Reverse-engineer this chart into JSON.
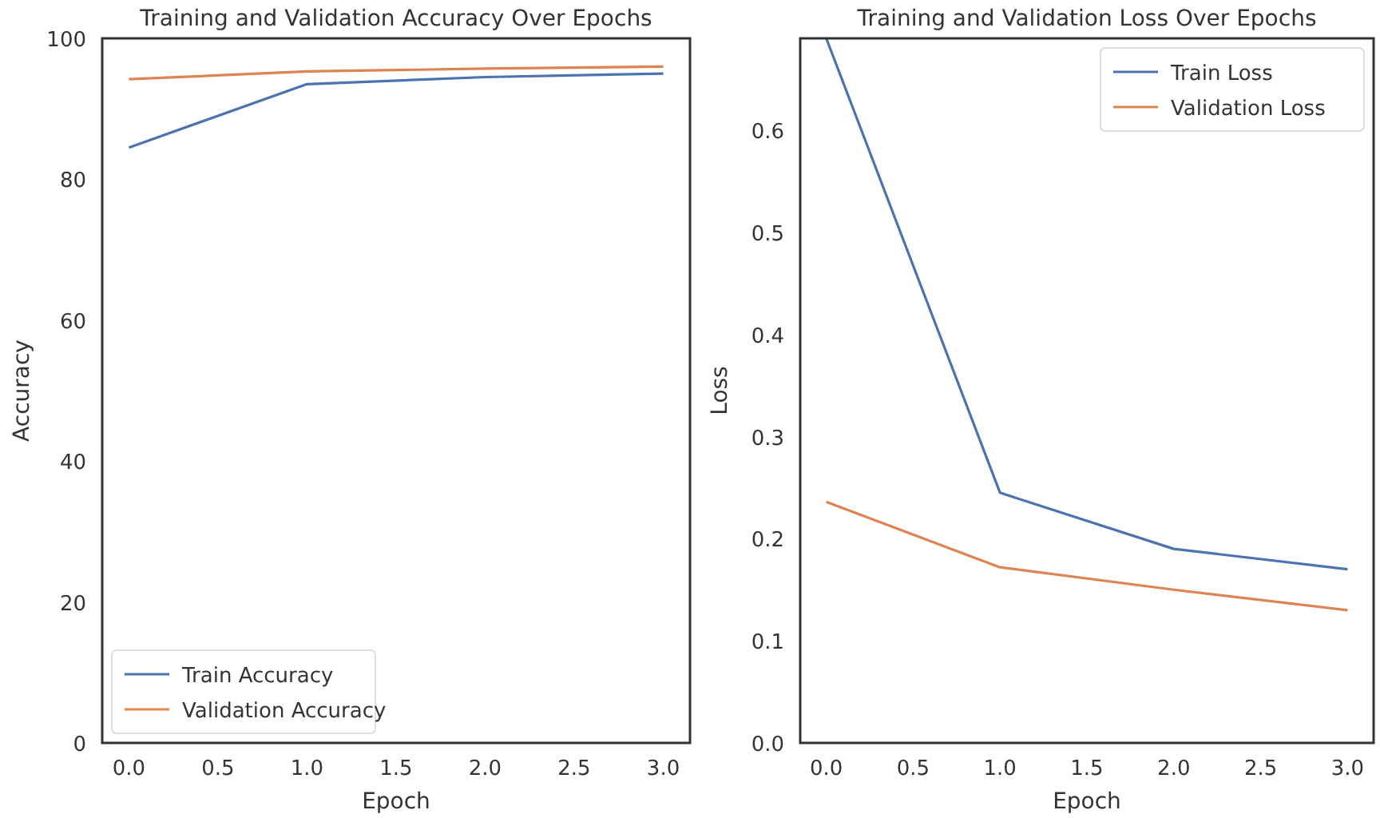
{
  "chart_data": [
    {
      "type": "line",
      "title": "Training and Validation Accuracy Over Epochs",
      "xlabel": "Epoch",
      "ylabel": "Accuracy",
      "x": [
        0,
        1,
        2,
        3
      ],
      "xlim": [
        -0.15,
        3.15
      ],
      "xticks": [
        {
          "value": 0,
          "label": "0.0"
        },
        {
          "value": 0.5,
          "label": "0.5"
        },
        {
          "value": 1,
          "label": "1.0"
        },
        {
          "value": 1.5,
          "label": "1.5"
        },
        {
          "value": 2,
          "label": "2.0"
        },
        {
          "value": 2.5,
          "label": "2.5"
        },
        {
          "value": 3,
          "label": "3.0"
        }
      ],
      "ylim": [
        0,
        100
      ],
      "yticks": [
        0,
        20,
        40,
        60,
        80,
        100
      ],
      "legend": "bottom left",
      "grid": false,
      "series": [
        {
          "name": "Train Accuracy",
          "color": "#4c72b0",
          "values": [
            84.5,
            93.5,
            94.5,
            95.0
          ]
        },
        {
          "name": "Validation Accuracy",
          "color": "#dd8452",
          "values": [
            94.2,
            95.3,
            95.7,
            96.0
          ]
        }
      ]
    },
    {
      "type": "line",
      "title": "Training and Validation Loss Over Epochs",
      "xlabel": "Epoch",
      "ylabel": "Loss",
      "x": [
        0,
        1,
        2,
        3
      ],
      "xlim": [
        -0.15,
        3.15
      ],
      "xticks": [
        {
          "value": 0,
          "label": "0.0"
        },
        {
          "value": 0.5,
          "label": "0.5"
        },
        {
          "value": 1,
          "label": "1.0"
        },
        {
          "value": 1.5,
          "label": "1.5"
        },
        {
          "value": 2,
          "label": "2.0"
        },
        {
          "value": 2.5,
          "label": "2.5"
        },
        {
          "value": 3,
          "label": "3.0"
        }
      ],
      "ylim": [
        0,
        0.69
      ],
      "yticks": [
        {
          "value": 0,
          "label": "0.0"
        },
        0.1,
        0.2,
        0.3,
        0.4,
        0.5,
        0.6
      ],
      "legend": "top right",
      "grid": false,
      "series": [
        {
          "name": "Train Loss",
          "color": "#4c72b0",
          "values": [
            0.69,
            0.245,
            0.19,
            0.17
          ]
        },
        {
          "name": "Validation Loss",
          "color": "#dd8452",
          "values": [
            0.236,
            0.172,
            0.15,
            0.13
          ]
        }
      ]
    }
  ]
}
